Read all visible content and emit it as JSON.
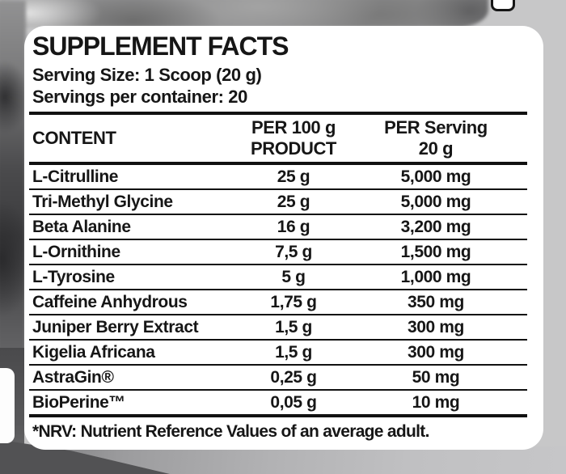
{
  "panel": {
    "title": "SUPPLEMENT FACTS",
    "serving_size": "Serving Size: 1 Scoop (20 g)",
    "servings_per_container": "Servings per container: 20",
    "footnote": "*NRV: Nutrient Reference Values of an average adult."
  },
  "table": {
    "columns": {
      "content": "CONTENT",
      "per_100g_line1": "PER 100 g",
      "per_100g_line2": "PRODUCT",
      "per_serving_line1": "PER Serving",
      "per_serving_line2": "20 g"
    },
    "rows": [
      {
        "name": "L-Citrulline",
        "per_100g": "25 g",
        "per_serving": "5,000 mg"
      },
      {
        "name": "Tri-Methyl Glycine",
        "per_100g": "25 g",
        "per_serving": "5,000 mg"
      },
      {
        "name": "Beta Alanine",
        "per_100g": "16 g",
        "per_serving": "3,200 mg"
      },
      {
        "name": "L-Ornithine",
        "per_100g": "7,5 g",
        "per_serving": "1,500 mg"
      },
      {
        "name": "L-Tyrosine",
        "per_100g": "5 g",
        "per_serving": "1,000 mg"
      },
      {
        "name": "Caffeine Anhydrous",
        "per_100g": "1,75 g",
        "per_serving": "350 mg"
      },
      {
        "name": "Juniper Berry Extract",
        "per_100g": "1,5 g",
        "per_serving": "300 mg"
      },
      {
        "name": "Kigelia Africana",
        "per_100g": "1,5 g",
        "per_serving": "300 mg"
      },
      {
        "name": "AstraGin®",
        "per_100g": "0,25 g",
        "per_serving": "50 mg"
      },
      {
        "name": "BioPerine™",
        "per_100g": "0,05 g",
        "per_serving": "10 mg"
      }
    ]
  },
  "colors": {
    "panel_bg": "#ffffff",
    "text": "#161616",
    "backdrop": "#c7c7c8",
    "dark_band": "#525254",
    "mid_band": "#9c9c9e"
  }
}
